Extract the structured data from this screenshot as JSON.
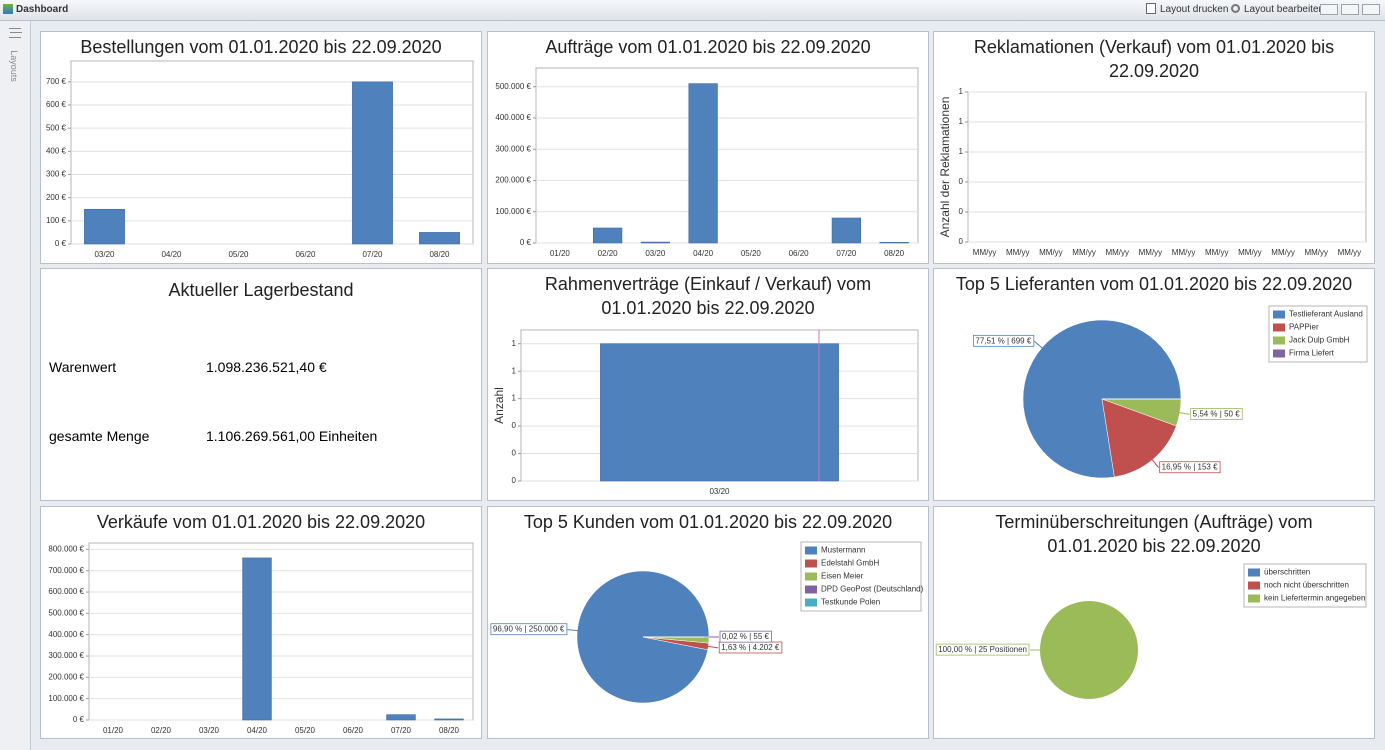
{
  "window": {
    "title": "Dashboard",
    "actions": [
      "Layout drucken",
      "Layout bearbeiten"
    ]
  },
  "sidebar": {
    "label": "Layouts"
  },
  "stock": {
    "title": "Aktueller Lagerbestand",
    "rows": [
      [
        "Warenwert",
        "1.098.236.521,40 €"
      ],
      [
        "gesamte Menge",
        "1.106.269.561,00 Einheiten"
      ]
    ]
  },
  "chart_data": [
    {
      "type": "bar",
      "title": "Bestellungen vom 01.01.2020 bis 22.09.2020",
      "color": "#4f81bd",
      "categories": [
        "03/20",
        "04/20",
        "05/20",
        "06/20",
        "07/20",
        "08/20"
      ],
      "values": [
        150,
        0,
        0,
        0,
        700,
        50
      ],
      "ylim": [
        0,
        790
      ],
      "yticks": [
        {
          "value": 0,
          "label": "0 €"
        },
        {
          "value": 100,
          "label": "100 €"
        },
        {
          "value": 200,
          "label": "200 €"
        },
        {
          "value": 300,
          "label": "300 €"
        },
        {
          "value": 400,
          "label": "400 €"
        },
        {
          "value": 500,
          "label": "500 €"
        },
        {
          "value": 600,
          "label": "600 €"
        },
        {
          "value": 700,
          "label": "700 €"
        }
      ],
      "grid": true
    },
    {
      "type": "bar",
      "title": "Aufträge vom 01.01.2020 bis 22.09.2020",
      "color": "#4f81bd",
      "categories": [
        "01/20",
        "02/20",
        "03/20",
        "04/20",
        "05/20",
        "06/20",
        "07/20",
        "08/20"
      ],
      "values": [
        0,
        48000,
        3000,
        510000,
        0,
        0,
        80000,
        2000
      ],
      "ylim": [
        0,
        560000
      ],
      "yticks": [
        {
          "value": 0,
          "label": "0 €"
        },
        {
          "value": 100000,
          "label": "100.000 €"
        },
        {
          "value": 200000,
          "label": "200.000 €"
        },
        {
          "value": 300000,
          "label": "300.000 €"
        },
        {
          "value": 400000,
          "label": "400.000 €"
        },
        {
          "value": 500000,
          "label": "500.000 €"
        }
      ],
      "grid": true
    },
    {
      "type": "bar",
      "title": "Reklamationen (Verkauf) vom 01.01.2020 bis 22.09.2020",
      "color": "#4f81bd",
      "y_label": "Anzahl der Reklamationen",
      "categories": [
        "MM/yy",
        "MM/yy",
        "MM/yy",
        "MM/yy",
        "MM/yy",
        "MM/yy",
        "MM/yy",
        "MM/yy",
        "MM/yy",
        "MM/yy",
        "MM/yy",
        "MM/yy"
      ],
      "ylim": [
        0,
        1
      ],
      "yticks": [
        0,
        {
          "value": 0.2,
          "label": "0"
        },
        {
          "value": 0.4,
          "label": "0"
        },
        {
          "value": 0.6,
          "label": "1"
        },
        {
          "value": 0.8,
          "label": "1"
        },
        1
      ],
      "grid": true
    },
    {
      "type": "bar",
      "title": "Rahmenverträge (Einkauf / Verkauf) vom 01.01.2020 bis 22.09.2020",
      "color": "#4f81bd",
      "y_label": "Anzahl",
      "categories": [
        "03/20"
      ],
      "values": [
        1
      ],
      "ylim": [
        0,
        1.1
      ],
      "yticks": [
        0,
        {
          "value": 0.2,
          "label": "0"
        },
        {
          "value": 0.4,
          "label": "0"
        },
        {
          "value": 0.6,
          "label": "1"
        },
        {
          "value": 0.8,
          "label": "1"
        },
        1
      ],
      "grid": true
    },
    {
      "type": "pie",
      "title": "Top 5 Lieferanten vom 01.01.2020 bis 22.09.2020",
      "categories": [
        "Testlieferant Ausland",
        "PAPPier",
        "Jack Dulp GmbH",
        "Firma Liefert"
      ],
      "values": [
        77.51,
        16.95,
        5.54,
        0
      ],
      "value_labels": [
        "77,51 % | 699 €",
        "16,95 % | 153 €",
        "5,54 % | 50 €",
        null
      ],
      "colors": [
        "#4f81bd",
        "#c0504d",
        "#9bbb59",
        "#8064a2"
      ]
    },
    {
      "type": "bar",
      "title": "Verkäufe vom 01.01.2020 bis 22.09.2020",
      "color": "#4f81bd",
      "categories": [
        "01/20",
        "02/20",
        "03/20",
        "04/20",
        "05/20",
        "06/20",
        "07/20",
        "08/20"
      ],
      "values": [
        0,
        0,
        0,
        760000,
        0,
        0,
        25000,
        5000
      ],
      "ylim": [
        0,
        830000
      ],
      "yticks": [
        {
          "value": 0,
          "label": "0 €"
        },
        {
          "value": 100000,
          "label": "100.000 €"
        },
        {
          "value": 200000,
          "label": "200.000 €"
        },
        {
          "value": 300000,
          "label": "300.000 €"
        },
        {
          "value": 400000,
          "label": "400.000 €"
        },
        {
          "value": 500000,
          "label": "500.000 €"
        },
        {
          "value": 600000,
          "label": "600.000 €"
        },
        {
          "value": 700000,
          "label": "700.000 €"
        },
        {
          "value": 800000,
          "label": "800.000 €"
        }
      ],
      "grid": true
    },
    {
      "type": "pie",
      "title": "Top 5 Kunden vom 01.01.2020 bis 22.09.2020",
      "categories": [
        "Mustermann",
        "Edelstahl GmbH",
        "Eisen Meier",
        "DPD GeoPost (Deutschland)",
        "Testkunde Polen"
      ],
      "values": [
        96.9,
        1.63,
        1.45,
        0.02,
        0
      ],
      "value_labels": [
        "96,90 % | 250.000 €",
        "1,63 % | 4.202 €",
        null,
        "0,02 % | 55 €",
        null
      ],
      "colors": [
        "#4f81bd",
        "#c0504d",
        "#9bbb59",
        "#8064a2",
        "#4bacc6"
      ]
    },
    {
      "type": "pie",
      "title": "Terminüberschreitungen (Aufträge) vom 01.01.2020 bis 22.09.2020",
      "categories": [
        "überschritten",
        "noch nicht überschritten",
        "kein Liefertermin angegeben"
      ],
      "values": [
        0,
        0,
        100
      ],
      "value_labels": [
        null,
        null,
        "100,00 % | 25 Positionen"
      ],
      "colors": [
        "#4f81bd",
        "#c0504d",
        "#9bbb59"
      ]
    }
  ]
}
